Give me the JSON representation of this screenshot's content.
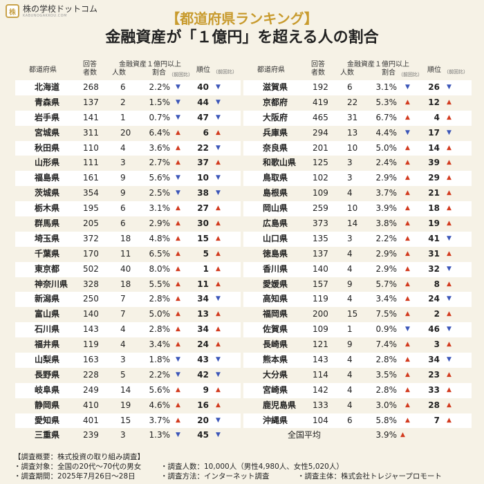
{
  "brand": {
    "name": "株の学校ドットコム",
    "sub": "KABUNOGAKKOU.COM",
    "mark": "株"
  },
  "title": "【都道府県ランキング】",
  "subtitle": "金融資産が「１億円」を超える人の割合",
  "header": {
    "pref": "都道府県",
    "resp1": "回答",
    "resp2": "者数",
    "asset1": "金融資産１億円以上",
    "count": "人数",
    "ratio": "割合",
    "ratio_note": "（前回比）",
    "rank": "順位",
    "rank_note": "（前回比）"
  },
  "colors": {
    "up": "#d23a1e",
    "down": "#3b55b8",
    "title": "#c89b2e",
    "stripe": "#ffffff",
    "bg": "#f6f2e6"
  },
  "chart_data": {
    "type": "table",
    "columns": [
      "都道府県",
      "回答者数",
      "人数",
      "割合",
      "割合前回比",
      "順位",
      "順位前回比"
    ],
    "left": [
      {
        "pref": "北海道",
        "resp": "268",
        "count": "6",
        "pct": "2.2%",
        "pct_dir": "down",
        "rank": "40",
        "rank_dir": "down"
      },
      {
        "pref": "青森県",
        "resp": "137",
        "count": "2",
        "pct": "1.5%",
        "pct_dir": "down",
        "rank": "44",
        "rank_dir": "down"
      },
      {
        "pref": "岩手県",
        "resp": "141",
        "count": "1",
        "pct": "0.7%",
        "pct_dir": "down",
        "rank": "47",
        "rank_dir": "down"
      },
      {
        "pref": "宮城県",
        "resp": "311",
        "count": "20",
        "pct": "6.4%",
        "pct_dir": "up",
        "rank": "6",
        "rank_dir": "up"
      },
      {
        "pref": "秋田県",
        "resp": "110",
        "count": "4",
        "pct": "3.6%",
        "pct_dir": "up",
        "rank": "22",
        "rank_dir": "down"
      },
      {
        "pref": "山形県",
        "resp": "111",
        "count": "3",
        "pct": "2.7%",
        "pct_dir": "up",
        "rank": "37",
        "rank_dir": "up"
      },
      {
        "pref": "福島県",
        "resp": "161",
        "count": "9",
        "pct": "5.6%",
        "pct_dir": "down",
        "rank": "10",
        "rank_dir": "down"
      },
      {
        "pref": "茨城県",
        "resp": "354",
        "count": "9",
        "pct": "2.5%",
        "pct_dir": "down",
        "rank": "38",
        "rank_dir": "down"
      },
      {
        "pref": "栃木県",
        "resp": "195",
        "count": "6",
        "pct": "3.1%",
        "pct_dir": "up",
        "rank": "27",
        "rank_dir": "up"
      },
      {
        "pref": "群馬県",
        "resp": "205",
        "count": "6",
        "pct": "2.9%",
        "pct_dir": "up",
        "rank": "30",
        "rank_dir": "up"
      },
      {
        "pref": "埼玉県",
        "resp": "372",
        "count": "18",
        "pct": "4.8%",
        "pct_dir": "up",
        "rank": "15",
        "rank_dir": "up"
      },
      {
        "pref": "千葉県",
        "resp": "170",
        "count": "11",
        "pct": "6.5%",
        "pct_dir": "up",
        "rank": "5",
        "rank_dir": "up"
      },
      {
        "pref": "東京都",
        "resp": "502",
        "count": "40",
        "pct": "8.0%",
        "pct_dir": "up",
        "rank": "1",
        "rank_dir": "up"
      },
      {
        "pref": "神奈川県",
        "resp": "328",
        "count": "18",
        "pct": "5.5%",
        "pct_dir": "up",
        "rank": "11",
        "rank_dir": "up"
      },
      {
        "pref": "新潟県",
        "resp": "250",
        "count": "7",
        "pct": "2.8%",
        "pct_dir": "up",
        "rank": "34",
        "rank_dir": "down"
      },
      {
        "pref": "富山県",
        "resp": "140",
        "count": "7",
        "pct": "5.0%",
        "pct_dir": "up",
        "rank": "13",
        "rank_dir": "up"
      },
      {
        "pref": "石川県",
        "resp": "143",
        "count": "4",
        "pct": "2.8%",
        "pct_dir": "up",
        "rank": "34",
        "rank_dir": "up"
      },
      {
        "pref": "福井県",
        "resp": "119",
        "count": "4",
        "pct": "3.4%",
        "pct_dir": "up",
        "rank": "24",
        "rank_dir": "up"
      },
      {
        "pref": "山梨県",
        "resp": "163",
        "count": "3",
        "pct": "1.8%",
        "pct_dir": "down",
        "rank": "43",
        "rank_dir": "down"
      },
      {
        "pref": "長野県",
        "resp": "228",
        "count": "5",
        "pct": "2.2%",
        "pct_dir": "down",
        "rank": "42",
        "rank_dir": "down"
      },
      {
        "pref": "岐阜県",
        "resp": "249",
        "count": "14",
        "pct": "5.6%",
        "pct_dir": "up",
        "rank": "9",
        "rank_dir": "up"
      },
      {
        "pref": "静岡県",
        "resp": "410",
        "count": "19",
        "pct": "4.6%",
        "pct_dir": "up",
        "rank": "16",
        "rank_dir": "up"
      },
      {
        "pref": "愛知県",
        "resp": "401",
        "count": "15",
        "pct": "3.7%",
        "pct_dir": "up",
        "rank": "20",
        "rank_dir": "down"
      },
      {
        "pref": "三重県",
        "resp": "239",
        "count": "3",
        "pct": "1.3%",
        "pct_dir": "down",
        "rank": "45",
        "rank_dir": "down"
      }
    ],
    "right": [
      {
        "pref": "滋賀県",
        "resp": "192",
        "count": "6",
        "pct": "3.1%",
        "pct_dir": "down",
        "rank": "26",
        "rank_dir": "down"
      },
      {
        "pref": "京都府",
        "resp": "419",
        "count": "22",
        "pct": "5.3%",
        "pct_dir": "up",
        "rank": "12",
        "rank_dir": "up"
      },
      {
        "pref": "大阪府",
        "resp": "465",
        "count": "31",
        "pct": "6.7%",
        "pct_dir": "up",
        "rank": "4",
        "rank_dir": "up"
      },
      {
        "pref": "兵庫県",
        "resp": "294",
        "count": "13",
        "pct": "4.4%",
        "pct_dir": "down",
        "rank": "17",
        "rank_dir": "down"
      },
      {
        "pref": "奈良県",
        "resp": "201",
        "count": "10",
        "pct": "5.0%",
        "pct_dir": "up",
        "rank": "14",
        "rank_dir": "up"
      },
      {
        "pref": "和歌山県",
        "resp": "125",
        "count": "3",
        "pct": "2.4%",
        "pct_dir": "up",
        "rank": "39",
        "rank_dir": "up"
      },
      {
        "pref": "鳥取県",
        "resp": "102",
        "count": "3",
        "pct": "2.9%",
        "pct_dir": "up",
        "rank": "29",
        "rank_dir": "up"
      },
      {
        "pref": "島根県",
        "resp": "109",
        "count": "4",
        "pct": "3.7%",
        "pct_dir": "up",
        "rank": "21",
        "rank_dir": "up"
      },
      {
        "pref": "岡山県",
        "resp": "259",
        "count": "10",
        "pct": "3.9%",
        "pct_dir": "up",
        "rank": "18",
        "rank_dir": "up"
      },
      {
        "pref": "広島県",
        "resp": "373",
        "count": "14",
        "pct": "3.8%",
        "pct_dir": "up",
        "rank": "19",
        "rank_dir": "up"
      },
      {
        "pref": "山口県",
        "resp": "135",
        "count": "3",
        "pct": "2.2%",
        "pct_dir": "up",
        "rank": "41",
        "rank_dir": "down"
      },
      {
        "pref": "徳島県",
        "resp": "137",
        "count": "4",
        "pct": "2.9%",
        "pct_dir": "up",
        "rank": "31",
        "rank_dir": "up"
      },
      {
        "pref": "香川県",
        "resp": "140",
        "count": "4",
        "pct": "2.9%",
        "pct_dir": "up",
        "rank": "32",
        "rank_dir": "down"
      },
      {
        "pref": "愛媛県",
        "resp": "157",
        "count": "9",
        "pct": "5.7%",
        "pct_dir": "up",
        "rank": "8",
        "rank_dir": "up"
      },
      {
        "pref": "高知県",
        "resp": "119",
        "count": "4",
        "pct": "3.4%",
        "pct_dir": "up",
        "rank": "24",
        "rank_dir": "down"
      },
      {
        "pref": "福岡県",
        "resp": "200",
        "count": "15",
        "pct": "7.5%",
        "pct_dir": "up",
        "rank": "2",
        "rank_dir": "up"
      },
      {
        "pref": "佐賀県",
        "resp": "109",
        "count": "1",
        "pct": "0.9%",
        "pct_dir": "down",
        "rank": "46",
        "rank_dir": "down"
      },
      {
        "pref": "長崎県",
        "resp": "121",
        "count": "9",
        "pct": "7.4%",
        "pct_dir": "up",
        "rank": "3",
        "rank_dir": "up"
      },
      {
        "pref": "熊本県",
        "resp": "143",
        "count": "4",
        "pct": "2.8%",
        "pct_dir": "up",
        "rank": "34",
        "rank_dir": "down"
      },
      {
        "pref": "大分県",
        "resp": "114",
        "count": "4",
        "pct": "3.5%",
        "pct_dir": "up",
        "rank": "23",
        "rank_dir": "up"
      },
      {
        "pref": "宮崎県",
        "resp": "142",
        "count": "4",
        "pct": "2.8%",
        "pct_dir": "up",
        "rank": "33",
        "rank_dir": "up"
      },
      {
        "pref": "鹿児島県",
        "resp": "133",
        "count": "4",
        "pct": "3.0%",
        "pct_dir": "up",
        "rank": "28",
        "rank_dir": "up"
      },
      {
        "pref": "沖縄県",
        "resp": "104",
        "count": "6",
        "pct": "5.8%",
        "pct_dir": "up",
        "rank": "7",
        "rank_dir": "up"
      }
    ],
    "average": {
      "label": "全国平均",
      "pct": "3.9%",
      "pct_dir": "up"
    }
  },
  "footer": {
    "overview": "【調査概要：株式投資の取り組み調査】",
    "target": "・調査対象：全国の20代〜70代の男女",
    "people": "・調査人数：10,000人（男性4,980人、女性5,020人）",
    "period": "・調査期間：2025年7月26日〜28日",
    "method": "・調査方法：インターネット調査",
    "sponsor": "・調査主体：株式会社トレジャープロモート"
  }
}
